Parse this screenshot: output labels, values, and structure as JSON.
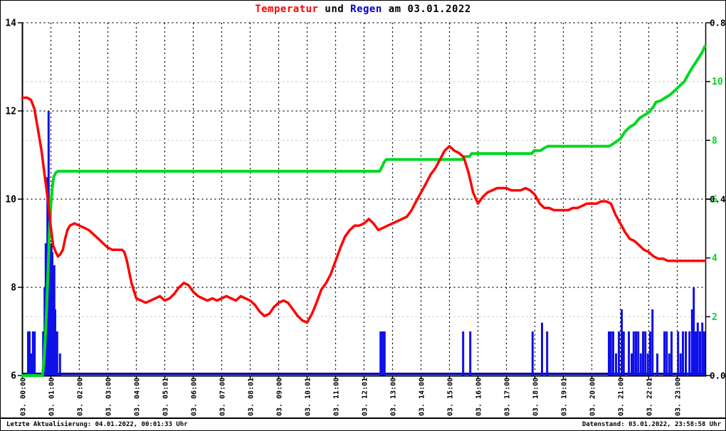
{
  "title": {
    "part1": "Temperatur",
    "part2": " und ",
    "part3": "Regen",
    "part4": " am 03.01.2022"
  },
  "footer": {
    "left": "Letzte Aktualisierung: 04.01.2022, 00:01:33 Uhr",
    "right": "Datenstand: 03.01.2022, 23:58:58 Uhr"
  },
  "colors": {
    "temperature_line": "#ff0000",
    "rain_total_line": "#00d820",
    "rain_bars": "#1010e8",
    "rain_baseline": "#0000b0",
    "title_regen": "#0000cc",
    "axis": "#000000",
    "grid_major": "#000000",
    "grid_minor": "#c0c0c0",
    "right_axis_total_labels": "#00d820",
    "right_axis_rate_labels": "#000000"
  },
  "chart_data": {
    "type": "mixed",
    "title": "Temperatur und Regen am 03.01.2022",
    "grid": "on",
    "x_axis": {
      "hours_start": 0,
      "hours_end": 24,
      "tick_labels": [
        "03. 00:00",
        "03. 01:00",
        "03. 02:00",
        "03. 03:00",
        "03. 04:00",
        "03. 05:01",
        "03. 06:00",
        "03. 07:00",
        "03. 08:01",
        "03. 09:00",
        "03. 10:01",
        "03. 11:00",
        "03. 12:01",
        "03. 13:00",
        "03. 14:00",
        "03. 15:00",
        "03. 16:00",
        "03. 17:00",
        "03. 18:00",
        "03. 19:01",
        "03. 20:00",
        "03. 21:00",
        "03. 22:01",
        "03. 23:00"
      ]
    },
    "left_axis": {
      "min": 6,
      "max": 14,
      "major_ticks": [
        6,
        8,
        10,
        12,
        14
      ],
      "tick_labels": [
        "6",
        "8",
        "10",
        "12",
        "14"
      ]
    },
    "right_axis_rain_rate": {
      "min": 0.0,
      "max": 0.8,
      "major_ticks": [
        0.0,
        0.4,
        0.8
      ],
      "tick_labels": [
        "0.0",
        "0.4",
        "0.8"
      ]
    },
    "right_axis_rain_total": {
      "min": 0,
      "max": 12,
      "major_ticks": [
        2,
        4,
        6,
        8,
        10
      ],
      "tick_labels": [
        "2",
        "4",
        "6",
        "8",
        "10"
      ],
      "minor_gridline_values": [
        2,
        4,
        8,
        10
      ]
    },
    "series": [
      {
        "key": "temperature",
        "label_from_title": "Temperatur",
        "type": "line",
        "axis": "left",
        "points": [
          [
            0.0,
            12.3
          ],
          [
            0.17,
            12.3
          ],
          [
            0.3,
            12.25
          ],
          [
            0.42,
            12.05
          ],
          [
            0.5,
            11.75
          ],
          [
            0.58,
            11.45
          ],
          [
            0.67,
            11.1
          ],
          [
            0.75,
            10.7
          ],
          [
            0.83,
            10.3
          ],
          [
            0.92,
            9.85
          ],
          [
            1.0,
            9.35
          ],
          [
            1.08,
            8.95
          ],
          [
            1.17,
            8.8
          ],
          [
            1.25,
            8.7
          ],
          [
            1.33,
            8.75
          ],
          [
            1.42,
            8.85
          ],
          [
            1.5,
            9.1
          ],
          [
            1.58,
            9.3
          ],
          [
            1.67,
            9.4
          ],
          [
            1.83,
            9.45
          ],
          [
            2.0,
            9.4
          ],
          [
            2.17,
            9.35
          ],
          [
            2.33,
            9.3
          ],
          [
            2.5,
            9.2
          ],
          [
            2.67,
            9.1
          ],
          [
            2.83,
            9.0
          ],
          [
            3.0,
            8.9
          ],
          [
            3.17,
            8.85
          ],
          [
            3.33,
            8.85
          ],
          [
            3.5,
            8.85
          ],
          [
            3.58,
            8.8
          ],
          [
            3.67,
            8.6
          ],
          [
            3.83,
            8.1
          ],
          [
            4.0,
            7.75
          ],
          [
            4.17,
            7.7
          ],
          [
            4.33,
            7.65
          ],
          [
            4.5,
            7.7
          ],
          [
            4.67,
            7.75
          ],
          [
            4.83,
            7.8
          ],
          [
            5.0,
            7.7
          ],
          [
            5.17,
            7.75
          ],
          [
            5.33,
            7.85
          ],
          [
            5.5,
            8.0
          ],
          [
            5.67,
            8.1
          ],
          [
            5.83,
            8.05
          ],
          [
            6.0,
            7.9
          ],
          [
            6.17,
            7.8
          ],
          [
            6.33,
            7.75
          ],
          [
            6.5,
            7.7
          ],
          [
            6.67,
            7.75
          ],
          [
            6.83,
            7.7
          ],
          [
            7.0,
            7.75
          ],
          [
            7.17,
            7.8
          ],
          [
            7.33,
            7.75
          ],
          [
            7.5,
            7.7
          ],
          [
            7.67,
            7.8
          ],
          [
            7.83,
            7.75
          ],
          [
            8.0,
            7.7
          ],
          [
            8.17,
            7.6
          ],
          [
            8.33,
            7.45
          ],
          [
            8.5,
            7.35
          ],
          [
            8.67,
            7.4
          ],
          [
            8.83,
            7.55
          ],
          [
            9.0,
            7.65
          ],
          [
            9.17,
            7.7
          ],
          [
            9.33,
            7.65
          ],
          [
            9.5,
            7.5
          ],
          [
            9.67,
            7.35
          ],
          [
            9.83,
            7.25
          ],
          [
            10.0,
            7.2
          ],
          [
            10.17,
            7.4
          ],
          [
            10.33,
            7.65
          ],
          [
            10.5,
            7.95
          ],
          [
            10.67,
            8.1
          ],
          [
            10.83,
            8.3
          ],
          [
            11.0,
            8.6
          ],
          [
            11.17,
            8.9
          ],
          [
            11.33,
            9.15
          ],
          [
            11.5,
            9.3
          ],
          [
            11.67,
            9.4
          ],
          [
            11.83,
            9.4
          ],
          [
            12.0,
            9.45
          ],
          [
            12.17,
            9.55
          ],
          [
            12.33,
            9.45
          ],
          [
            12.5,
            9.3
          ],
          [
            12.67,
            9.35
          ],
          [
            12.83,
            9.4
          ],
          [
            13.0,
            9.45
          ],
          [
            13.17,
            9.5
          ],
          [
            13.33,
            9.55
          ],
          [
            13.5,
            9.6
          ],
          [
            13.67,
            9.75
          ],
          [
            13.83,
            9.95
          ],
          [
            14.0,
            10.15
          ],
          [
            14.17,
            10.35
          ],
          [
            14.33,
            10.55
          ],
          [
            14.5,
            10.7
          ],
          [
            14.67,
            10.9
          ],
          [
            14.83,
            11.1
          ],
          [
            15.0,
            11.2
          ],
          [
            15.17,
            11.1
          ],
          [
            15.33,
            11.05
          ],
          [
            15.5,
            10.95
          ],
          [
            15.67,
            10.6
          ],
          [
            15.83,
            10.15
          ],
          [
            16.0,
            9.9
          ],
          [
            16.17,
            10.05
          ],
          [
            16.33,
            10.15
          ],
          [
            16.5,
            10.2
          ],
          [
            16.67,
            10.25
          ],
          [
            16.83,
            10.25
          ],
          [
            17.0,
            10.25
          ],
          [
            17.17,
            10.2
          ],
          [
            17.33,
            10.2
          ],
          [
            17.5,
            10.2
          ],
          [
            17.67,
            10.25
          ],
          [
            17.83,
            10.2
          ],
          [
            18.0,
            10.1
          ],
          [
            18.17,
            9.9
          ],
          [
            18.33,
            9.8
          ],
          [
            18.5,
            9.8
          ],
          [
            18.67,
            9.75
          ],
          [
            18.83,
            9.75
          ],
          [
            19.0,
            9.75
          ],
          [
            19.17,
            9.75
          ],
          [
            19.33,
            9.8
          ],
          [
            19.5,
            9.8
          ],
          [
            19.67,
            9.85
          ],
          [
            19.83,
            9.9
          ],
          [
            20.0,
            9.9
          ],
          [
            20.17,
            9.9
          ],
          [
            20.33,
            9.95
          ],
          [
            20.5,
            9.95
          ],
          [
            20.67,
            9.9
          ],
          [
            20.83,
            9.65
          ],
          [
            21.0,
            9.45
          ],
          [
            21.17,
            9.25
          ],
          [
            21.33,
            9.1
          ],
          [
            21.5,
            9.05
          ],
          [
            21.67,
            8.95
          ],
          [
            21.83,
            8.85
          ],
          [
            22.0,
            8.8
          ],
          [
            22.17,
            8.7
          ],
          [
            22.33,
            8.65
          ],
          [
            22.5,
            8.65
          ],
          [
            22.67,
            8.6
          ],
          [
            22.83,
            8.6
          ],
          [
            23.0,
            8.6
          ],
          [
            23.25,
            8.6
          ],
          [
            23.5,
            8.6
          ],
          [
            23.75,
            8.6
          ],
          [
            23.97,
            8.6
          ]
        ]
      },
      {
        "key": "rain-total",
        "label_from_title": "Regen",
        "type": "line",
        "axis": "right_total",
        "points": [
          [
            0.0,
            0
          ],
          [
            0.7,
            0
          ],
          [
            0.75,
            0.4
          ],
          [
            0.8,
            1.2
          ],
          [
            0.85,
            2.3
          ],
          [
            0.9,
            3.6
          ],
          [
            0.95,
            4.9
          ],
          [
            1.0,
            5.8
          ],
          [
            1.05,
            6.4
          ],
          [
            1.1,
            6.75
          ],
          [
            1.17,
            6.9
          ],
          [
            1.25,
            6.95
          ],
          [
            12.55,
            6.95
          ],
          [
            12.63,
            7.1
          ],
          [
            12.7,
            7.25
          ],
          [
            12.78,
            7.35
          ],
          [
            15.45,
            7.35
          ],
          [
            15.52,
            7.45
          ],
          [
            15.7,
            7.45
          ],
          [
            15.78,
            7.55
          ],
          [
            17.9,
            7.55
          ],
          [
            17.97,
            7.65
          ],
          [
            18.2,
            7.65
          ],
          [
            18.3,
            7.72
          ],
          [
            18.45,
            7.8
          ],
          [
            20.6,
            7.8
          ],
          [
            20.7,
            7.85
          ],
          [
            20.85,
            7.95
          ],
          [
            21.0,
            8.05
          ],
          [
            21.17,
            8.3
          ],
          [
            21.33,
            8.45
          ],
          [
            21.5,
            8.55
          ],
          [
            21.67,
            8.75
          ],
          [
            21.83,
            8.85
          ],
          [
            22.0,
            8.95
          ],
          [
            22.17,
            9.15
          ],
          [
            22.25,
            9.3
          ],
          [
            22.42,
            9.35
          ],
          [
            22.58,
            9.45
          ],
          [
            22.75,
            9.55
          ],
          [
            22.92,
            9.7
          ],
          [
            23.08,
            9.85
          ],
          [
            23.25,
            10.0
          ],
          [
            23.42,
            10.3
          ],
          [
            23.58,
            10.55
          ],
          [
            23.75,
            10.8
          ],
          [
            23.88,
            11.0
          ],
          [
            23.97,
            11.2
          ]
        ]
      },
      {
        "key": "rain-rate",
        "label_from_title": "Regen",
        "type": "bar",
        "axis": "right_rate",
        "points": [
          [
            0.2,
            0.1
          ],
          [
            0.25,
            0.1
          ],
          [
            0.3,
            0.05
          ],
          [
            0.37,
            0.1
          ],
          [
            0.43,
            0.1
          ],
          [
            0.73,
            0.1
          ],
          [
            0.78,
            0.2
          ],
          [
            0.82,
            0.3
          ],
          [
            0.85,
            0.3
          ],
          [
            0.88,
            0.45
          ],
          [
            0.92,
            0.6
          ],
          [
            0.95,
            0.3
          ],
          [
            0.98,
            0.3
          ],
          [
            1.02,
            0.3
          ],
          [
            1.05,
            0.28
          ],
          [
            1.08,
            0.25
          ],
          [
            1.12,
            0.25
          ],
          [
            1.15,
            0.15
          ],
          [
            1.18,
            0.1
          ],
          [
            1.22,
            0.1
          ],
          [
            1.32,
            0.05
          ],
          [
            12.58,
            0.1
          ],
          [
            12.65,
            0.1
          ],
          [
            12.72,
            0.1
          ],
          [
            15.48,
            0.1
          ],
          [
            15.73,
            0.1
          ],
          [
            17.92,
            0.1
          ],
          [
            18.25,
            0.12
          ],
          [
            18.43,
            0.1
          ],
          [
            20.6,
            0.1
          ],
          [
            20.67,
            0.1
          ],
          [
            20.75,
            0.1
          ],
          [
            20.85,
            0.05
          ],
          [
            20.95,
            0.1
          ],
          [
            21.05,
            0.15
          ],
          [
            21.12,
            0.1
          ],
          [
            21.3,
            0.1
          ],
          [
            21.4,
            0.05
          ],
          [
            21.47,
            0.1
          ],
          [
            21.55,
            0.1
          ],
          [
            21.63,
            0.1
          ],
          [
            21.72,
            0.05
          ],
          [
            21.8,
            0.1
          ],
          [
            21.88,
            0.1
          ],
          [
            21.97,
            0.05
          ],
          [
            22.05,
            0.1
          ],
          [
            22.13,
            0.15
          ],
          [
            22.3,
            0.05
          ],
          [
            22.55,
            0.1
          ],
          [
            22.63,
            0.1
          ],
          [
            22.72,
            0.05
          ],
          [
            22.8,
            0.1
          ],
          [
            23.03,
            0.1
          ],
          [
            23.12,
            0.05
          ],
          [
            23.2,
            0.1
          ],
          [
            23.3,
            0.1
          ],
          [
            23.43,
            0.1
          ],
          [
            23.52,
            0.15
          ],
          [
            23.58,
            0.2
          ],
          [
            23.65,
            0.1
          ],
          [
            23.72,
            0.12
          ],
          [
            23.8,
            0.1
          ],
          [
            23.88,
            0.12
          ],
          [
            23.95,
            0.1
          ]
        ]
      }
    ]
  }
}
